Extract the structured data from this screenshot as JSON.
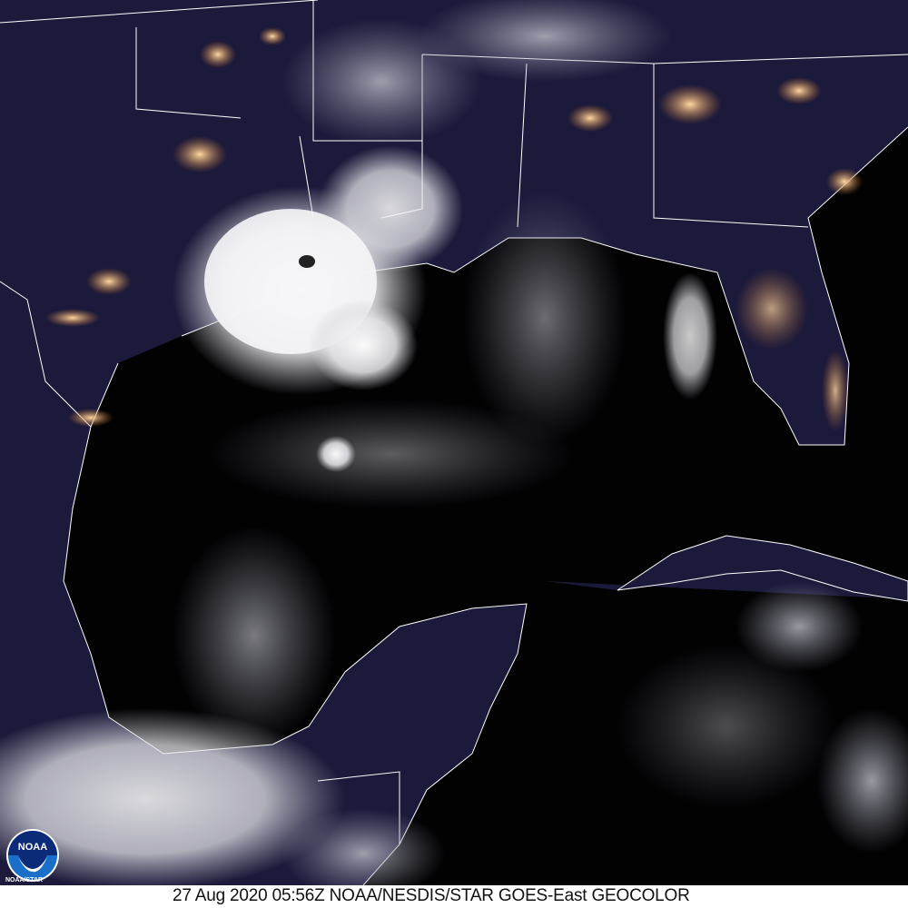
{
  "image": {
    "caption": "27 Aug 2020 05:56Z NOAA/NESDIS/STAR GOES-East GEOCOLOR",
    "logo": {
      "name": "noaa-logo",
      "text": "NOAA",
      "subtext": "NOAA/STAR"
    },
    "colors": {
      "land": "#1c1a3a",
      "ocean": "#020203",
      "cloud": "#f2f2f4",
      "city_lights": "#e0a060",
      "borders": "#ffffff"
    }
  }
}
